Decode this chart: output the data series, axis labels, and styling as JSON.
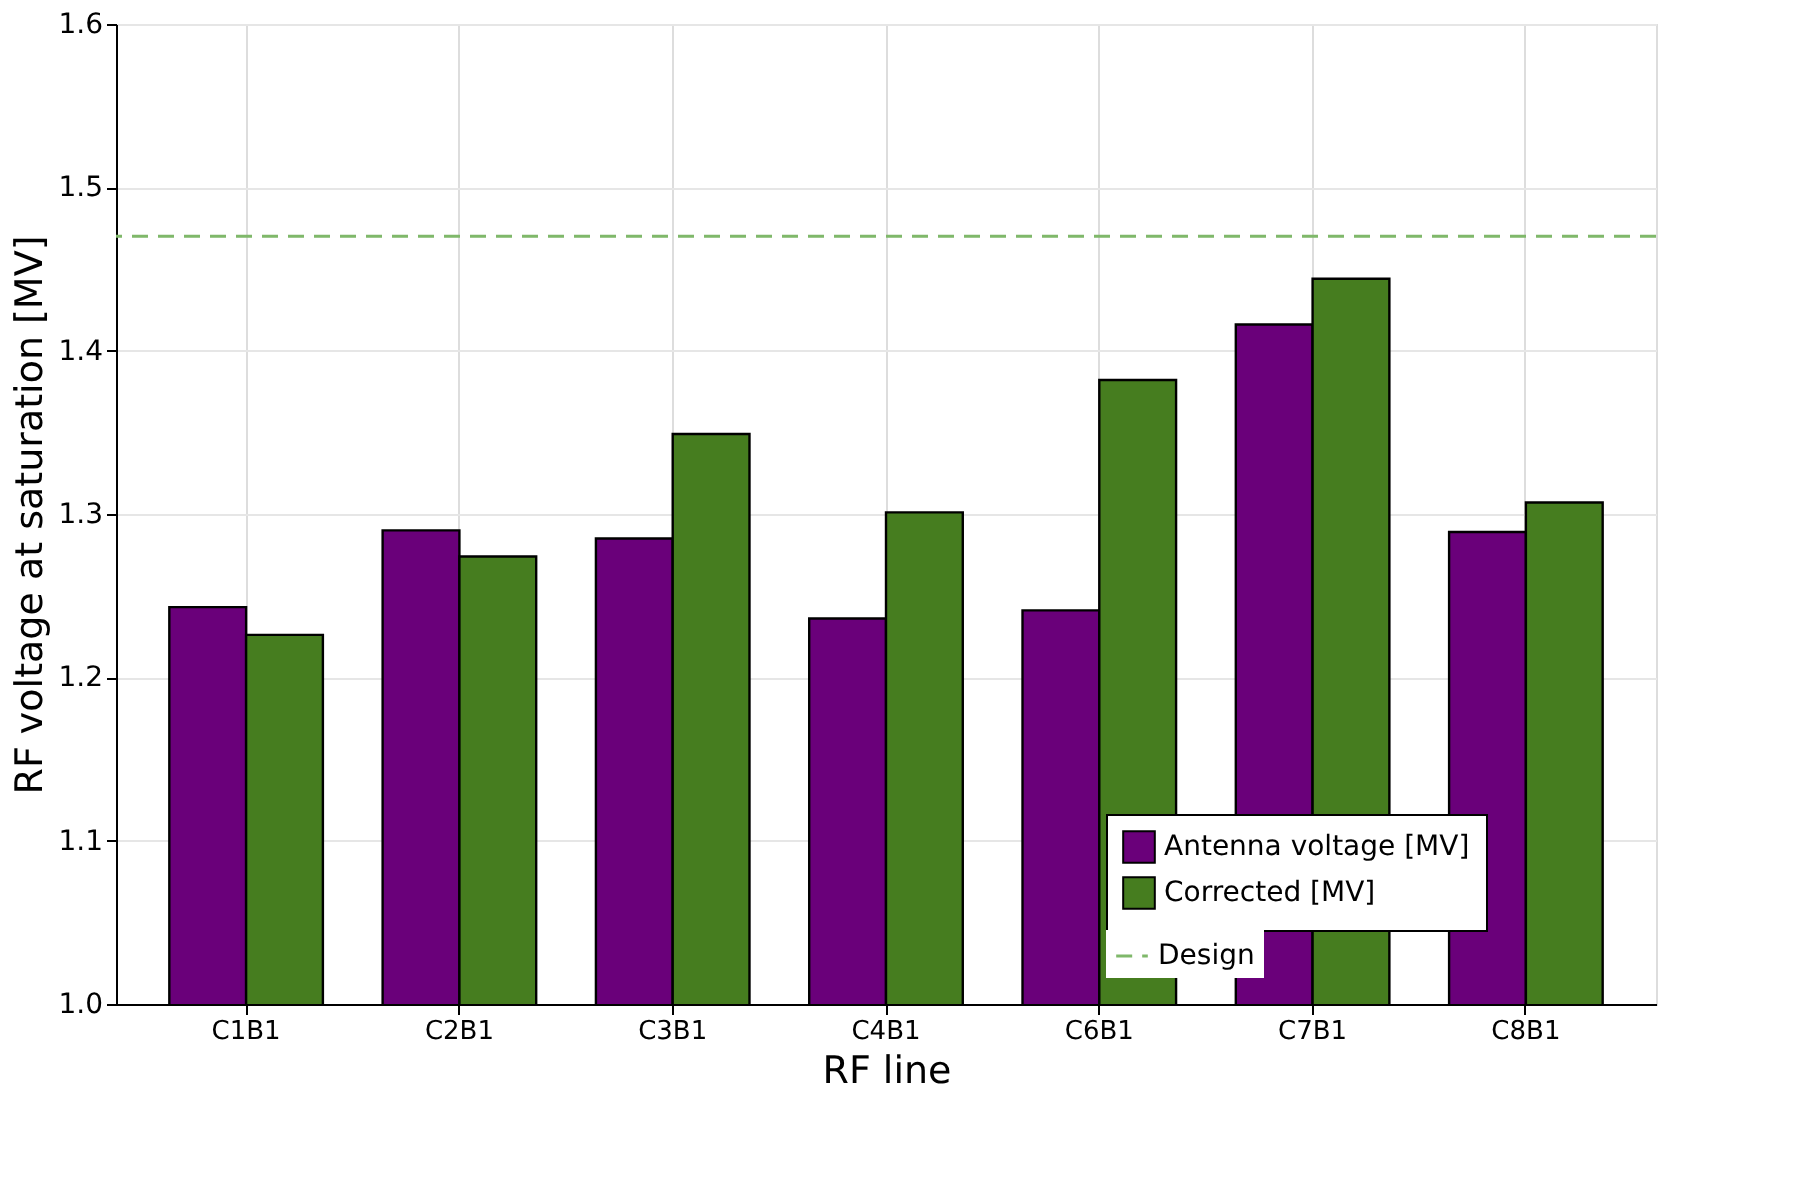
{
  "chart_data": {
    "type": "bar",
    "xlabel": "RF line",
    "ylabel": "RF voltage at saturation [MV]",
    "categories": [
      "C1B1",
      "C2B1",
      "C3B1",
      "C4B1",
      "C6B1",
      "C7B1",
      "C8B1"
    ],
    "series": [
      {
        "name": "Antenna voltage [MV]",
        "color": "#6a007a",
        "values": [
          1.243,
          1.29,
          1.285,
          1.236,
          1.241,
          1.416,
          1.289
        ]
      },
      {
        "name": "Corrected [MV]",
        "color": "#467d1f",
        "values": [
          1.226,
          1.274,
          1.349,
          1.301,
          1.382,
          1.444,
          1.307
        ]
      }
    ],
    "ylim": [
      1.0,
      1.6
    ],
    "yticks": [
      {
        "value": 1.0,
        "label": "1.0"
      },
      1.1,
      1.2,
      1.3,
      1.4,
      1.5,
      {
        "value": 1.6,
        "label": "1.6"
      }
    ],
    "ref_lines": [
      {
        "axis": "y",
        "value": 1.47,
        "label": "Design",
        "color": "#7fb86a",
        "line_style": "dashed"
      }
    ],
    "grid": true,
    "legend": "bottom right"
  }
}
